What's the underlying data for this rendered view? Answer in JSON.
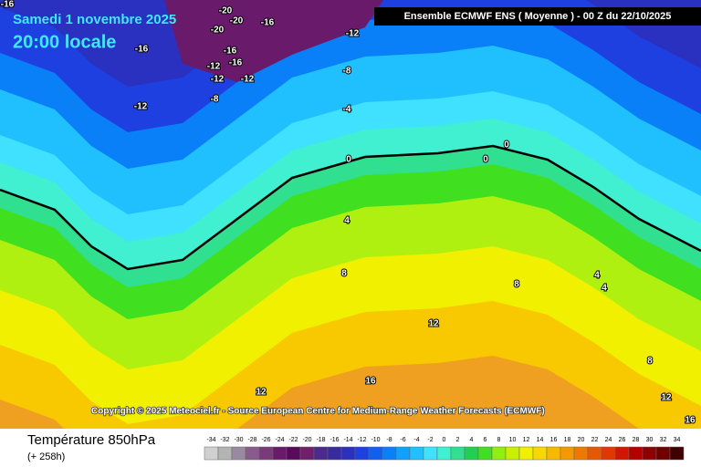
{
  "header": {
    "date": "Samedi 1 novembre 2025",
    "time": "20:00 locale",
    "model": "Ensemble ECMWF ENS  ( Moyenne )  -  00 Z du 22/10/2025"
  },
  "map": {
    "contour_labels": [
      "-16",
      "-20",
      "-20",
      "-20",
      "-16",
      "-12",
      "-16",
      "-16",
      "-16",
      "-12",
      "-12",
      "-12",
      "-8",
      "-8",
      "-12",
      "-4",
      "0",
      "4",
      "8",
      "12",
      "16",
      "12",
      "8",
      "12",
      "16",
      "4",
      "4",
      "8",
      "0",
      "0"
    ]
  },
  "copyright": "Copyright © 2025 Meteociel.fr - Source European Centre for Medium-Range Weather Forecasts (ECMWF)",
  "footer": {
    "title": "Température 850hPa",
    "lead": "(+ 258h)"
  },
  "legend": {
    "values": [
      -34,
      -32,
      -30,
      -28,
      -26,
      -24,
      -22,
      -20,
      -18,
      -16,
      -14,
      -12,
      -10,
      -8,
      -6,
      -4,
      -2,
      0,
      2,
      4,
      6,
      8,
      10,
      12,
      14,
      16,
      18,
      20,
      22,
      24,
      26,
      28,
      30,
      32,
      34
    ],
    "colors": [
      "#d0d0d0",
      "#b4b4b4",
      "#9a8aa0",
      "#8a5a8c",
      "#7a3a7a",
      "#6a1a6a",
      "#5a0a5a",
      "#70206a",
      "#4a2a8a",
      "#3a2aa0",
      "#2a30c0",
      "#1e40e0",
      "#1060f0",
      "#0a80f8",
      "#10a0ff",
      "#20c0ff",
      "#40e0ff",
      "#40f0d0",
      "#30e090",
      "#20d050",
      "#40e020",
      "#90ee10",
      "#c8f000",
      "#f0f000",
      "#f8d800",
      "#f8b800",
      "#f89800",
      "#f07800",
      "#e85800",
      "#e03800",
      "#d01800",
      "#b00000",
      "#900000",
      "#700000",
      "#400000"
    ]
  }
}
